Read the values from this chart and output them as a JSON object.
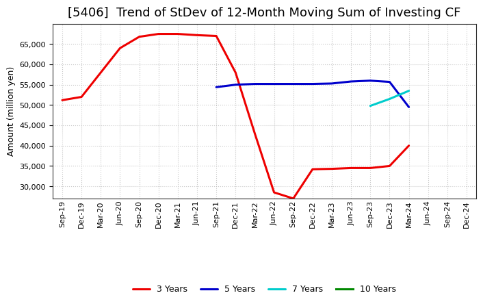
{
  "title": "[5406]  Trend of StDev of 12-Month Moving Sum of Investing CF",
  "ylabel": "Amount (million yen)",
  "background_color": "#ffffff",
  "grid_color": "#bbbbbb",
  "series": {
    "3 Years": {
      "color": "#ee0000",
      "x": [
        "Sep-19",
        "Dec-19",
        "Mar-20",
        "Jun-20",
        "Sep-20",
        "Dec-20",
        "Mar-21",
        "Jun-21",
        "Sep-21",
        "Dec-21",
        "Mar-22",
        "Jun-22",
        "Sep-22",
        "Dec-22",
        "Mar-23",
        "Jun-23",
        "Sep-23",
        "Dec-23",
        "Mar-24"
      ],
      "y": [
        51200,
        52000,
        58000,
        64000,
        66800,
        67500,
        67500,
        67200,
        67000,
        58000,
        43000,
        28500,
        27000,
        34200,
        34300,
        34500,
        34500,
        35000,
        40000
      ]
    },
    "5 Years": {
      "color": "#0000cc",
      "x": [
        "Sep-21",
        "Dec-21",
        "Mar-22",
        "Jun-22",
        "Sep-22",
        "Dec-22",
        "Mar-23",
        "Jun-23",
        "Sep-23",
        "Dec-23",
        "Mar-24"
      ],
      "y": [
        54400,
        55000,
        55200,
        55200,
        55200,
        55200,
        55300,
        55800,
        56000,
        55700,
        49500
      ]
    },
    "7 Years": {
      "color": "#00cccc",
      "x": [
        "Sep-23",
        "Dec-23",
        "Mar-24"
      ],
      "y": [
        49800,
        51500,
        53500
      ]
    },
    "10 Years": {
      "color": "#008800",
      "x": [],
      "y": []
    }
  },
  "x_tick_labels": [
    "Sep-19",
    "Dec-19",
    "Mar-20",
    "Jun-20",
    "Sep-20",
    "Dec-20",
    "Mar-21",
    "Jun-21",
    "Sep-21",
    "Dec-21",
    "Mar-22",
    "Jun-22",
    "Sep-22",
    "Dec-22",
    "Mar-23",
    "Jun-23",
    "Sep-23",
    "Dec-23",
    "Mar-24",
    "Jun-24",
    "Sep-24",
    "Dec-24"
  ],
  "ylim": [
    27000,
    70000
  ],
  "yticks": [
    30000,
    35000,
    40000,
    45000,
    50000,
    55000,
    60000,
    65000
  ],
  "legend_order": [
    "3 Years",
    "5 Years",
    "7 Years",
    "10 Years"
  ],
  "title_fontsize": 13,
  "title_fontweight": "normal",
  "axis_label_fontsize": 9,
  "tick_fontsize": 8,
  "legend_fontsize": 9,
  "line_width": 2.2
}
